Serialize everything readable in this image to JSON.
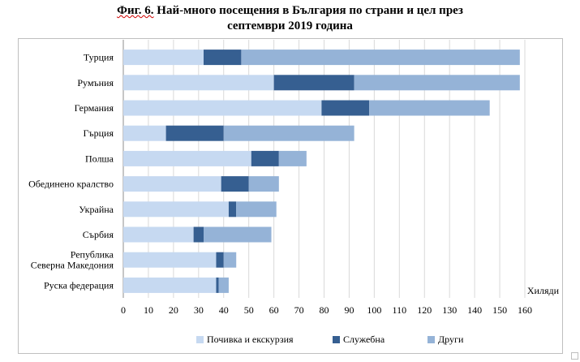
{
  "title": {
    "prefix": "Фиг. 6.",
    "line1_rest": " Най-много посещения в България по страни и цел през",
    "line2": "септември 2019 година"
  },
  "chart_data": {
    "type": "bar",
    "orientation": "horizontal",
    "stacked": true,
    "categories": [
      "Турция",
      "Румъния",
      "Германия",
      "Гърция",
      "Полша",
      "Обединено кралство",
      "Украйна",
      "Сърбия",
      "Република Северна Македония",
      "Руска федерация"
    ],
    "category_lines": [
      [
        "Турция"
      ],
      [
        "Румъния"
      ],
      [
        "Германия"
      ],
      [
        "Гърция"
      ],
      [
        "Полша"
      ],
      [
        "Обединено кралство"
      ],
      [
        "Украйна"
      ],
      [
        "Сърбия"
      ],
      [
        "Република",
        "Северна Македония"
      ],
      [
        "Руска федерация"
      ]
    ],
    "series": [
      {
        "name": "Почивка и екскурзия",
        "color": "#c6d9f1",
        "values": [
          32,
          60,
          79,
          17,
          51,
          39,
          42,
          28,
          37,
          37
        ]
      },
      {
        "name": "Служебна",
        "color": "#365f91",
        "values": [
          15,
          32,
          19,
          23,
          11,
          11,
          3,
          4,
          3,
          1
        ]
      },
      {
        "name": "Други",
        "color": "#95b3d7",
        "values": [
          111,
          66,
          48,
          52,
          11,
          12,
          16,
          27,
          5,
          4
        ]
      }
    ],
    "xlim": [
      0,
      160
    ],
    "xticks": [
      "0",
      "10",
      "20",
      "30",
      "40",
      "50",
      "60",
      "70",
      "80",
      "90",
      "100",
      "110",
      "120",
      "130",
      "140",
      "150",
      "160"
    ],
    "xlabel": "Хиляди",
    "grid": true,
    "legend_position": "bottom"
  }
}
